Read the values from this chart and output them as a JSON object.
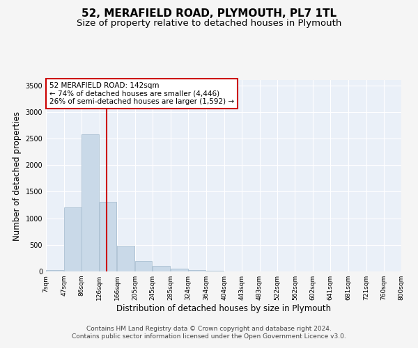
{
  "title": "52, MERAFIELD ROAD, PLYMOUTH, PL7 1TL",
  "subtitle": "Size of property relative to detached houses in Plymouth",
  "xlabel": "Distribution of detached houses by size in Plymouth",
  "ylabel": "Number of detached properties",
  "footer_line1": "Contains HM Land Registry data © Crown copyright and database right 2024.",
  "footer_line2": "Contains public sector information licensed under the Open Government Licence v3.0.",
  "annotation_line1": "52 MERAFIELD ROAD: 142sqm",
  "annotation_line2": "← 74% of detached houses are smaller (4,446)",
  "annotation_line3": "26% of semi-detached houses are larger (1,592) →",
  "property_size": 142,
  "bin_width": 39,
  "bins_left": [
    7,
    47,
    86,
    126,
    166,
    205,
    245,
    285,
    324,
    364,
    404,
    443,
    483,
    522,
    562,
    602,
    641,
    681,
    721,
    760
  ],
  "bin_labels": [
    "7sqm",
    "47sqm",
    "86sqm",
    "126sqm",
    "166sqm",
    "205sqm",
    "245sqm",
    "285sqm",
    "324sqm",
    "364sqm",
    "404sqm",
    "443sqm",
    "483sqm",
    "522sqm",
    "562sqm",
    "602sqm",
    "641sqm",
    "681sqm",
    "721sqm",
    "760sqm",
    "800sqm"
  ],
  "values": [
    30,
    1210,
    2580,
    1310,
    490,
    200,
    110,
    50,
    20,
    8,
    4,
    2,
    1,
    0,
    0,
    0,
    0,
    0,
    0,
    0
  ],
  "bar_color": "#c9d9e8",
  "bar_edge_color": "#a0b8cc",
  "vline_color": "#cc0000",
  "annotation_box_color": "#cc0000",
  "bg_color": "#eaf0f8",
  "grid_color": "#ffffff",
  "fig_bg_color": "#f5f5f5",
  "ylim": [
    0,
    3600
  ],
  "yticks": [
    0,
    500,
    1000,
    1500,
    2000,
    2500,
    3000,
    3500
  ],
  "title_fontsize": 11,
  "subtitle_fontsize": 9.5,
  "axis_label_fontsize": 8.5,
  "tick_fontsize": 7,
  "annotation_fontsize": 7.5,
  "footer_fontsize": 6.5
}
